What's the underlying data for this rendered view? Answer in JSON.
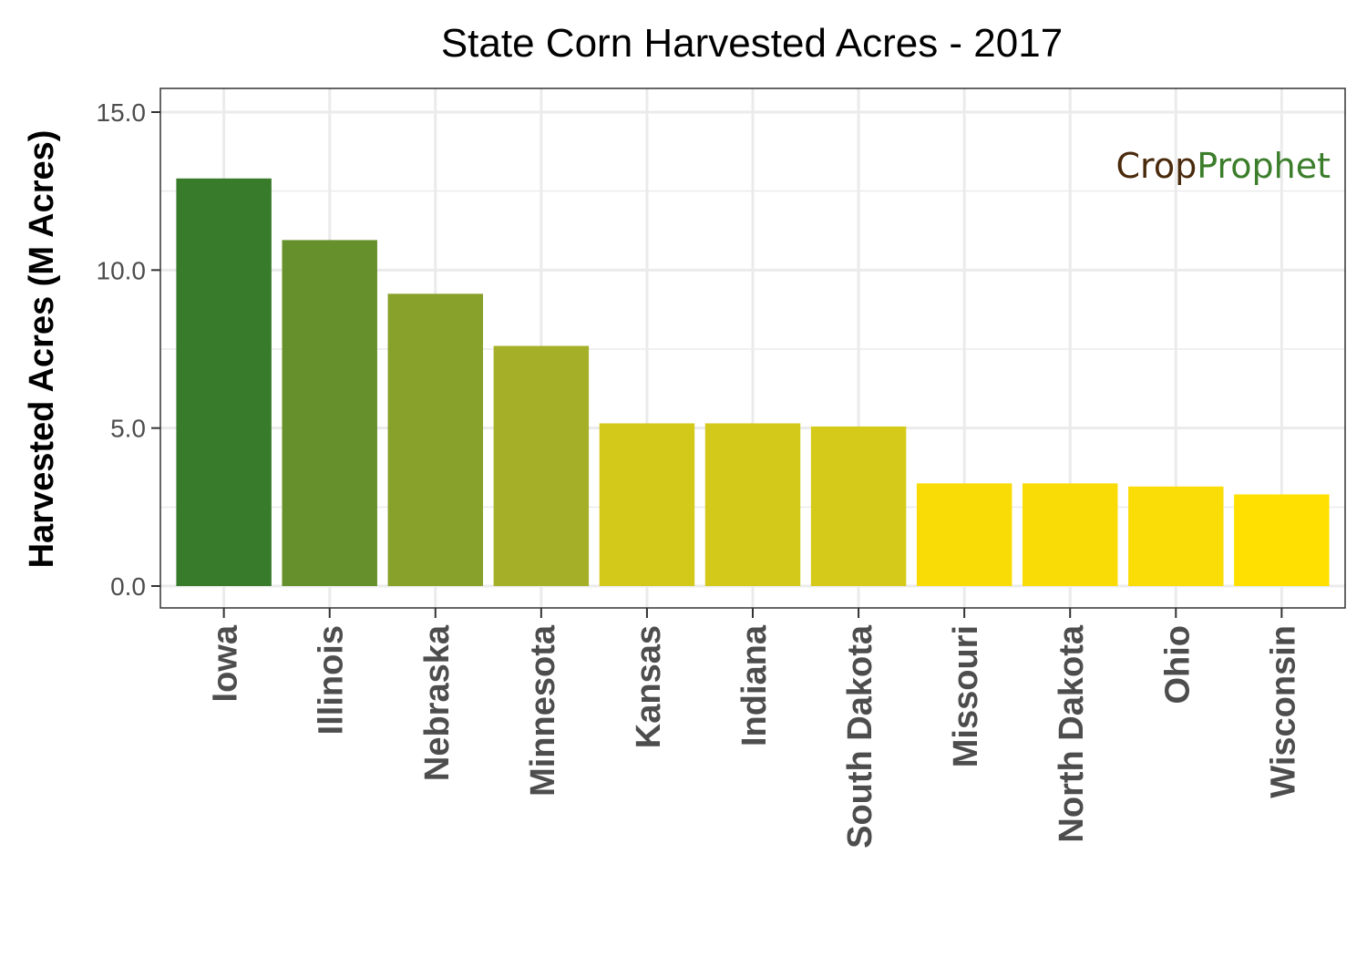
{
  "chart_data": {
    "type": "bar",
    "title": "State Corn Harvested Acres - 2017",
    "xlabel": "",
    "ylabel": "Harvested Acres (M Acres)",
    "ylim": [
      0,
      15.6
    ],
    "yticks": [
      0,
      5,
      10,
      15
    ],
    "ytick_labels": [
      "0.0",
      "5.0",
      "10.0",
      "15.0"
    ],
    "grid": true,
    "categories": [
      "Iowa",
      "Illinois",
      "Nebraska",
      "Minnesota",
      "Kansas",
      "Indiana",
      "South Dakota",
      "Missouri",
      "North Dakota",
      "Ohio",
      "Wisconsin"
    ],
    "values": [
      12.9,
      10.95,
      9.25,
      7.6,
      5.15,
      5.15,
      5.05,
      3.25,
      3.25,
      3.15,
      2.9
    ],
    "colors": [
      "#387b2b",
      "#66902c",
      "#87a12a",
      "#a5b028",
      "#d3c91b",
      "#d3c91b",
      "#d5ca1a",
      "#f9dc06",
      "#f9dc06",
      "#fadc06",
      "#ffe000"
    ]
  },
  "watermark": {
    "part1": "Crop",
    "part2": "Prophet"
  }
}
